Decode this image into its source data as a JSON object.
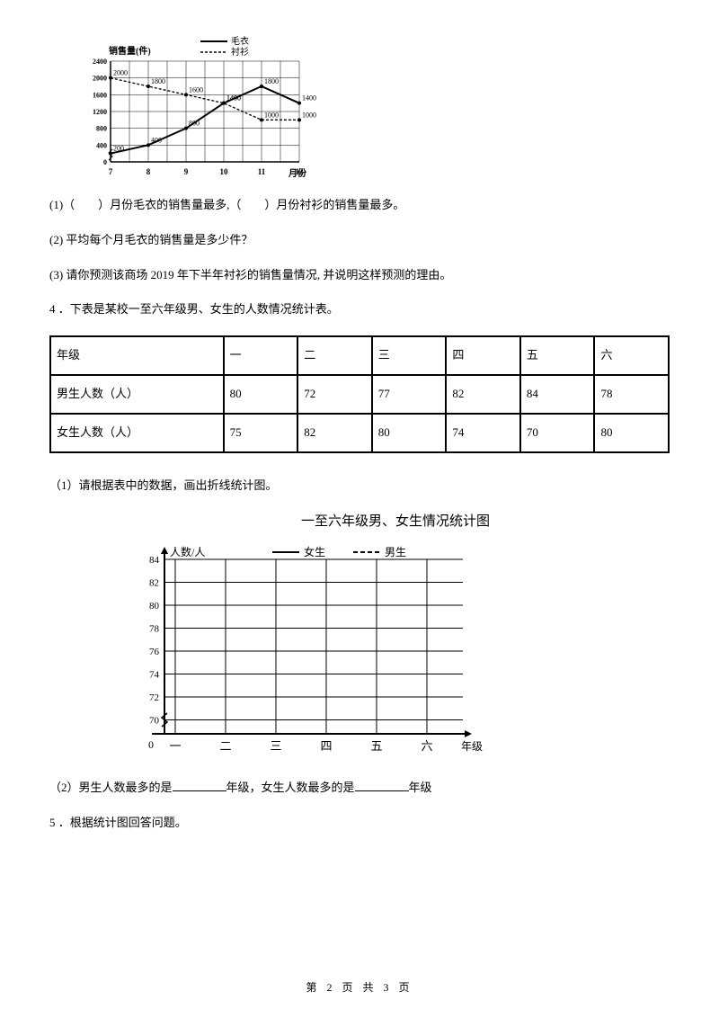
{
  "chart1": {
    "type": "line",
    "y_label": "销售量(件)",
    "x_label": "月份",
    "legend_solid": "毛衣",
    "legend_dash": "衬衫",
    "x_ticks": [
      7,
      8,
      9,
      10,
      11,
      12
    ],
    "y_ticks": [
      0,
      400,
      800,
      1200,
      1600,
      2000,
      2400
    ],
    "ylim": [
      0,
      2400
    ],
    "xlim": [
      7,
      12
    ],
    "series_solid": [
      {
        "x": 7,
        "y": 200,
        "label": "200"
      },
      {
        "x": 8,
        "y": 400,
        "label": "400"
      },
      {
        "x": 9,
        "y": 800,
        "label": "800"
      },
      {
        "x": 10,
        "y": 1400,
        "label": "1400"
      },
      {
        "x": 11,
        "y": 1800,
        "label": "1800"
      },
      {
        "x": 12,
        "y": 1400,
        "label": "1400"
      }
    ],
    "series_dash": [
      {
        "x": 7,
        "y": 2000,
        "label": "2000"
      },
      {
        "x": 8,
        "y": 1800,
        "label": "1800"
      },
      {
        "x": 9,
        "y": 1600,
        "label": "1600"
      },
      {
        "x": 10,
        "y": 1400,
        "label": "1400"
      },
      {
        "x": 11,
        "y": 1000,
        "label": "1000"
      },
      {
        "x": 12,
        "y": 1000,
        "label": "1000"
      }
    ],
    "grid_color": "#000000",
    "solid_color": "#000000",
    "dash_color": "#000000",
    "label_fontsize": 9
  },
  "q1": "(1)（　　）月份毛衣的销售量最多,（　　）月份衬衫的销售量最多。",
  "q2": "(2) 平均每个月毛衣的销售量是多少件？",
  "q3": "(3) 请你预测该商场 2019 年下半年衬衫的销售量情况, 并说明这样预测的理由。",
  "q4": "4 ．下表是某校一至六年级男、女生的人数情况统计表。",
  "table": {
    "head": [
      "年级",
      "一",
      "二",
      "三",
      "四",
      "五",
      "六"
    ],
    "row1": [
      "男生人数（人）",
      "80",
      "72",
      "77",
      "82",
      "84",
      "78"
    ],
    "row2": [
      "女生人数（人）",
      "75",
      "82",
      "80",
      "74",
      "70",
      "80"
    ]
  },
  "q4_1": "（1）请根据表中的数据，画出折线统计图。",
  "chart2": {
    "type": "line",
    "title": "一至六年级男、女生情况统计图",
    "y_label": "人数/人",
    "x_label": "年级",
    "legend_solid": "女生",
    "legend_dash": "男生",
    "y_ticks": [
      70,
      72,
      74,
      76,
      78,
      80,
      82,
      84
    ],
    "x_ticks": [
      "一",
      "二",
      "三",
      "四",
      "五",
      "六"
    ],
    "grid_color": "#000000",
    "label_fontsize": 12,
    "zero": "0"
  },
  "q4_2a": "（2）男生人数最多的是",
  "q4_2b": "年级，女生人数最多的是",
  "q4_2c": "年级",
  "q5": "5 ．根据统计图回答问题。",
  "footer": "第 2 页 共 3 页"
}
